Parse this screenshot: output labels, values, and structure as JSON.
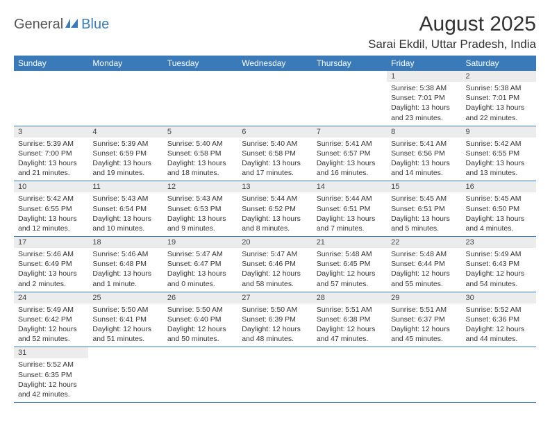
{
  "logo": {
    "general": "General",
    "blue": "Blue"
  },
  "header": {
    "month_title": "August 2025",
    "location": "Sarai Ekdil, Uttar Pradesh, India"
  },
  "colors": {
    "header_bg": "#3a7ab8",
    "daynum_bg": "#ececec",
    "border": "#3a7ab8"
  },
  "weekdays": [
    "Sunday",
    "Monday",
    "Tuesday",
    "Wednesday",
    "Thursday",
    "Friday",
    "Saturday"
  ],
  "weeks": [
    [
      null,
      null,
      null,
      null,
      null,
      {
        "n": "1",
        "sr": "Sunrise: 5:38 AM",
        "ss": "Sunset: 7:01 PM",
        "dl": "Daylight: 13 hours and 23 minutes."
      },
      {
        "n": "2",
        "sr": "Sunrise: 5:38 AM",
        "ss": "Sunset: 7:01 PM",
        "dl": "Daylight: 13 hours and 22 minutes."
      }
    ],
    [
      {
        "n": "3",
        "sr": "Sunrise: 5:39 AM",
        "ss": "Sunset: 7:00 PM",
        "dl": "Daylight: 13 hours and 21 minutes."
      },
      {
        "n": "4",
        "sr": "Sunrise: 5:39 AM",
        "ss": "Sunset: 6:59 PM",
        "dl": "Daylight: 13 hours and 19 minutes."
      },
      {
        "n": "5",
        "sr": "Sunrise: 5:40 AM",
        "ss": "Sunset: 6:58 PM",
        "dl": "Daylight: 13 hours and 18 minutes."
      },
      {
        "n": "6",
        "sr": "Sunrise: 5:40 AM",
        "ss": "Sunset: 6:58 PM",
        "dl": "Daylight: 13 hours and 17 minutes."
      },
      {
        "n": "7",
        "sr": "Sunrise: 5:41 AM",
        "ss": "Sunset: 6:57 PM",
        "dl": "Daylight: 13 hours and 16 minutes."
      },
      {
        "n": "8",
        "sr": "Sunrise: 5:41 AM",
        "ss": "Sunset: 6:56 PM",
        "dl": "Daylight: 13 hours and 14 minutes."
      },
      {
        "n": "9",
        "sr": "Sunrise: 5:42 AM",
        "ss": "Sunset: 6:55 PM",
        "dl": "Daylight: 13 hours and 13 minutes."
      }
    ],
    [
      {
        "n": "10",
        "sr": "Sunrise: 5:42 AM",
        "ss": "Sunset: 6:55 PM",
        "dl": "Daylight: 13 hours and 12 minutes."
      },
      {
        "n": "11",
        "sr": "Sunrise: 5:43 AM",
        "ss": "Sunset: 6:54 PM",
        "dl": "Daylight: 13 hours and 10 minutes."
      },
      {
        "n": "12",
        "sr": "Sunrise: 5:43 AM",
        "ss": "Sunset: 6:53 PM",
        "dl": "Daylight: 13 hours and 9 minutes."
      },
      {
        "n": "13",
        "sr": "Sunrise: 5:44 AM",
        "ss": "Sunset: 6:52 PM",
        "dl": "Daylight: 13 hours and 8 minutes."
      },
      {
        "n": "14",
        "sr": "Sunrise: 5:44 AM",
        "ss": "Sunset: 6:51 PM",
        "dl": "Daylight: 13 hours and 7 minutes."
      },
      {
        "n": "15",
        "sr": "Sunrise: 5:45 AM",
        "ss": "Sunset: 6:51 PM",
        "dl": "Daylight: 13 hours and 5 minutes."
      },
      {
        "n": "16",
        "sr": "Sunrise: 5:45 AM",
        "ss": "Sunset: 6:50 PM",
        "dl": "Daylight: 13 hours and 4 minutes."
      }
    ],
    [
      {
        "n": "17",
        "sr": "Sunrise: 5:46 AM",
        "ss": "Sunset: 6:49 PM",
        "dl": "Daylight: 13 hours and 2 minutes."
      },
      {
        "n": "18",
        "sr": "Sunrise: 5:46 AM",
        "ss": "Sunset: 6:48 PM",
        "dl": "Daylight: 13 hours and 1 minute."
      },
      {
        "n": "19",
        "sr": "Sunrise: 5:47 AM",
        "ss": "Sunset: 6:47 PM",
        "dl": "Daylight: 13 hours and 0 minutes."
      },
      {
        "n": "20",
        "sr": "Sunrise: 5:47 AM",
        "ss": "Sunset: 6:46 PM",
        "dl": "Daylight: 12 hours and 58 minutes."
      },
      {
        "n": "21",
        "sr": "Sunrise: 5:48 AM",
        "ss": "Sunset: 6:45 PM",
        "dl": "Daylight: 12 hours and 57 minutes."
      },
      {
        "n": "22",
        "sr": "Sunrise: 5:48 AM",
        "ss": "Sunset: 6:44 PM",
        "dl": "Daylight: 12 hours and 55 minutes."
      },
      {
        "n": "23",
        "sr": "Sunrise: 5:49 AM",
        "ss": "Sunset: 6:43 PM",
        "dl": "Daylight: 12 hours and 54 minutes."
      }
    ],
    [
      {
        "n": "24",
        "sr": "Sunrise: 5:49 AM",
        "ss": "Sunset: 6:42 PM",
        "dl": "Daylight: 12 hours and 52 minutes."
      },
      {
        "n": "25",
        "sr": "Sunrise: 5:50 AM",
        "ss": "Sunset: 6:41 PM",
        "dl": "Daylight: 12 hours and 51 minutes."
      },
      {
        "n": "26",
        "sr": "Sunrise: 5:50 AM",
        "ss": "Sunset: 6:40 PM",
        "dl": "Daylight: 12 hours and 50 minutes."
      },
      {
        "n": "27",
        "sr": "Sunrise: 5:50 AM",
        "ss": "Sunset: 6:39 PM",
        "dl": "Daylight: 12 hours and 48 minutes."
      },
      {
        "n": "28",
        "sr": "Sunrise: 5:51 AM",
        "ss": "Sunset: 6:38 PM",
        "dl": "Daylight: 12 hours and 47 minutes."
      },
      {
        "n": "29",
        "sr": "Sunrise: 5:51 AM",
        "ss": "Sunset: 6:37 PM",
        "dl": "Daylight: 12 hours and 45 minutes."
      },
      {
        "n": "30",
        "sr": "Sunrise: 5:52 AM",
        "ss": "Sunset: 6:36 PM",
        "dl": "Daylight: 12 hours and 44 minutes."
      }
    ],
    [
      {
        "n": "31",
        "sr": "Sunrise: 5:52 AM",
        "ss": "Sunset: 6:35 PM",
        "dl": "Daylight: 12 hours and 42 minutes."
      },
      null,
      null,
      null,
      null,
      null,
      null
    ]
  ]
}
